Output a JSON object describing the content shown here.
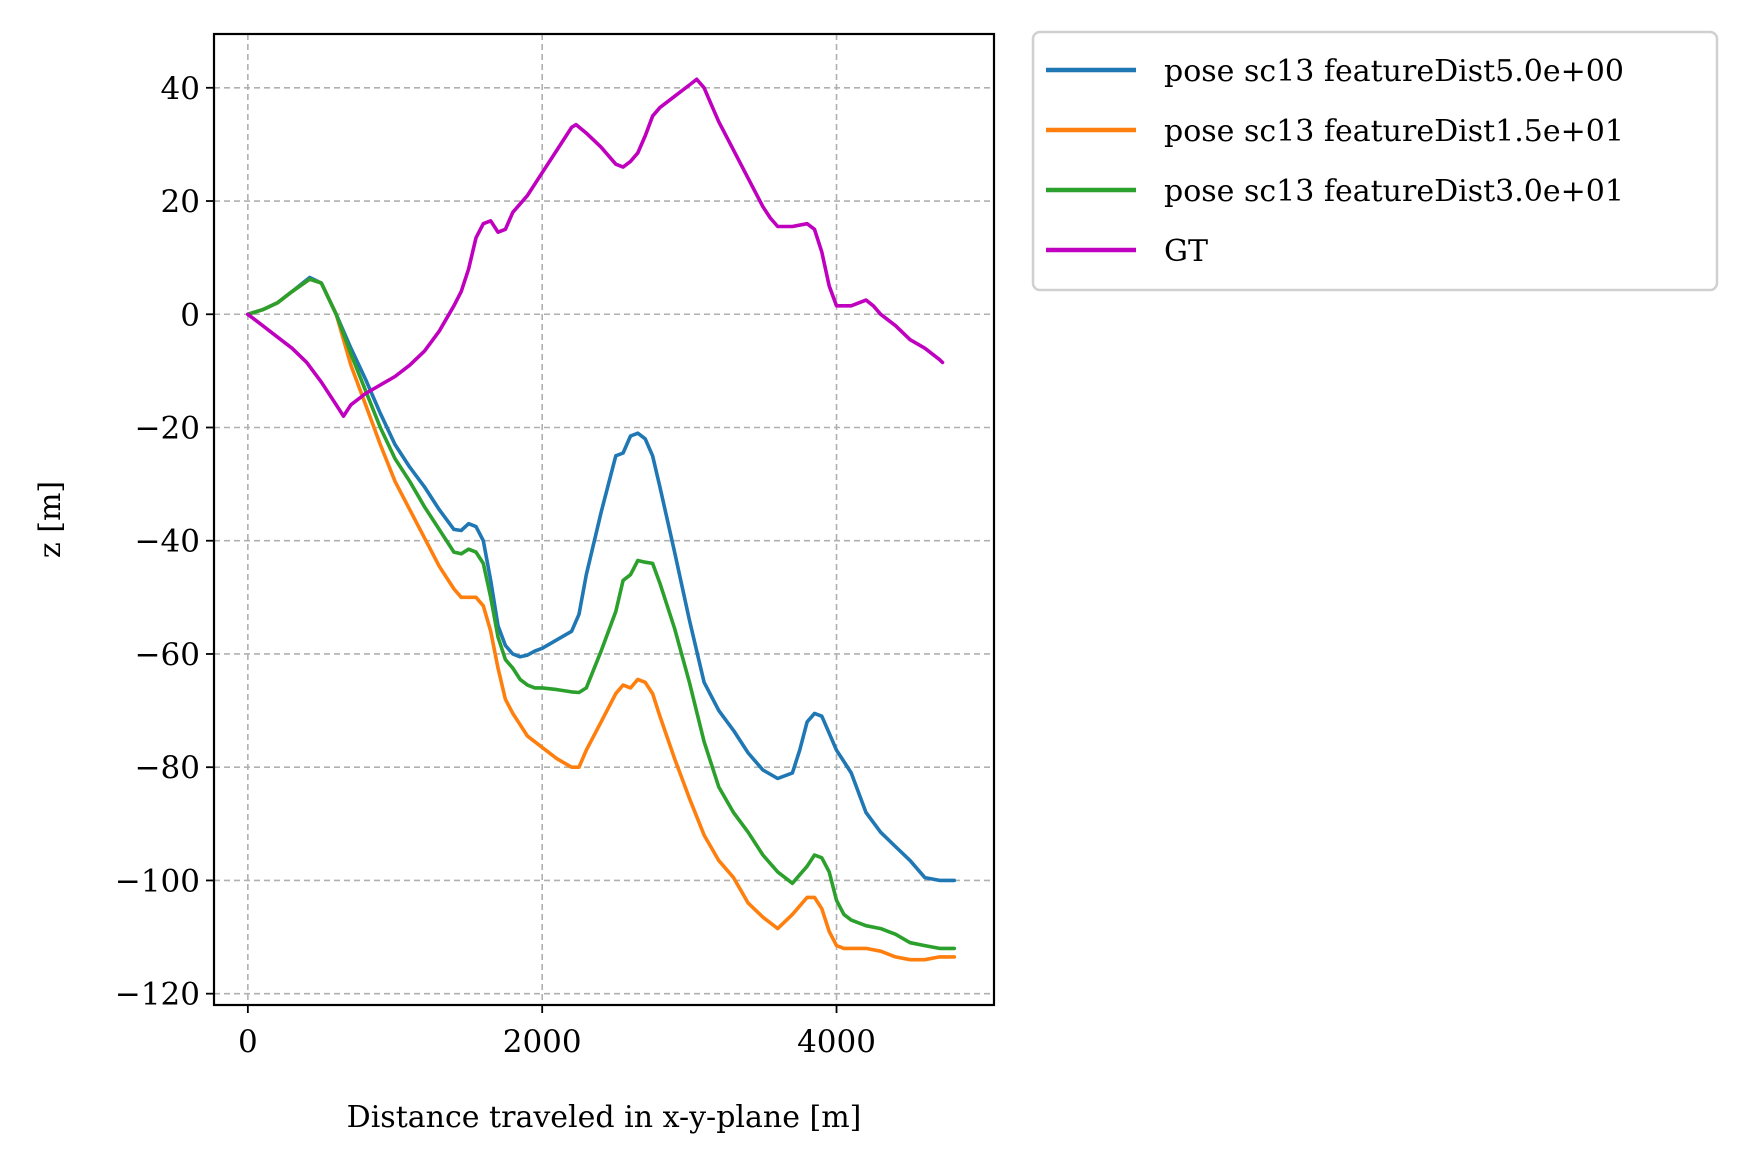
{
  "chart_data": {
    "type": "line",
    "xlabel": "Distance traveled in x-y-plane [m]",
    "ylabel": "z [m]",
    "xlim": [
      -230,
      5070
    ],
    "ylim": [
      -122,
      49.5
    ],
    "xticks": [
      0,
      2000,
      4000
    ],
    "yticks": [
      40,
      20,
      0,
      -20,
      -40,
      -60,
      -80,
      -100,
      -120
    ],
    "ytick_labels": [
      "40",
      "20",
      "0",
      "−20",
      "−40",
      "−60",
      "−80",
      "−100",
      "−120"
    ],
    "grid": true,
    "legend_position": "outside upper right",
    "series": [
      {
        "name": "pose sc13 featureDist5.0e+00",
        "color": "#1f77b4",
        "x": [
          0,
          100,
          200,
          300,
          420,
          500,
          600,
          700,
          800,
          900,
          1000,
          1100,
          1200,
          1300,
          1400,
          1450,
          1500,
          1550,
          1600,
          1650,
          1700,
          1750,
          1800,
          1850,
          1900,
          1950,
          2000,
          2100,
          2200,
          2250,
          2300,
          2400,
          2500,
          2550,
          2600,
          2650,
          2700,
          2750,
          2800,
          2900,
          3000,
          3100,
          3200,
          3300,
          3400,
          3500,
          3600,
          3700,
          3750,
          3800,
          3850,
          3900,
          3950,
          4000,
          4050,
          4100,
          4200,
          4300,
          4400,
          4500,
          4600,
          4700,
          4800
        ],
        "y": [
          0,
          0.8,
          2,
          4,
          6.5,
          5.5,
          0,
          -6,
          -11.5,
          -17.5,
          -23,
          -27,
          -30.5,
          -34.5,
          -38,
          -38.2,
          -37,
          -37.5,
          -40,
          -47,
          -55,
          -58.5,
          -60,
          -60.5,
          -60.2,
          -59.5,
          -59,
          -57.5,
          -56,
          -53,
          -46,
          -35,
          -25,
          -24.5,
          -21.5,
          -21,
          -22,
          -25,
          -30.5,
          -42,
          -54,
          -65,
          -70,
          -73.5,
          -77.5,
          -80.5,
          -82,
          -81,
          -77,
          -72,
          -70.5,
          -71,
          -74,
          -77,
          -79,
          -81,
          -88,
          -91.5,
          -94,
          -96.5,
          -99.5,
          -100,
          -100
        ]
      },
      {
        "name": "pose sc13 featureDist1.5e+01",
        "color": "#ff7f0e",
        "x": [
          0,
          100,
          200,
          300,
          420,
          500,
          600,
          700,
          800,
          900,
          1000,
          1100,
          1200,
          1300,
          1400,
          1450,
          1500,
          1550,
          1600,
          1650,
          1700,
          1750,
          1800,
          1850,
          1900,
          2000,
          2100,
          2200,
          2250,
          2300,
          2400,
          2500,
          2550,
          2600,
          2650,
          2700,
          2750,
          2800,
          2900,
          3000,
          3100,
          3200,
          3300,
          3400,
          3500,
          3600,
          3700,
          3800,
          3850,
          3900,
          3950,
          4000,
          4050,
          4100,
          4200,
          4300,
          4400,
          4500,
          4600,
          4700,
          4800
        ],
        "y": [
          0,
          0.8,
          2,
          4,
          6.2,
          5.5,
          0,
          -9,
          -16,
          -23,
          -29.5,
          -34.5,
          -39.5,
          -44.5,
          -48.5,
          -50,
          -50,
          -50,
          -51.5,
          -56,
          -62.5,
          -68,
          -70.5,
          -72.5,
          -74.5,
          -76.5,
          -78.5,
          -80,
          -80,
          -77,
          -72,
          -67,
          -65.5,
          -66,
          -64.5,
          -65,
          -67,
          -71,
          -78.5,
          -85.5,
          -92,
          -96.5,
          -99.5,
          -104,
          -106.5,
          -108.5,
          -106,
          -103,
          -103,
          -105,
          -109,
          -111.5,
          -112,
          -112,
          -112,
          -112.5,
          -113.5,
          -114,
          -114,
          -113.5,
          -113.5
        ]
      },
      {
        "name": "pose sc13 featureDist3.0e+01",
        "color": "#2ca02c",
        "x": [
          0,
          100,
          200,
          300,
          420,
          500,
          600,
          700,
          800,
          900,
          1000,
          1100,
          1200,
          1300,
          1400,
          1450,
          1500,
          1550,
          1600,
          1650,
          1700,
          1750,
          1800,
          1850,
          1900,
          1950,
          2000,
          2100,
          2200,
          2250,
          2300,
          2400,
          2500,
          2550,
          2600,
          2650,
          2700,
          2750,
          2800,
          2900,
          3000,
          3100,
          3200,
          3300,
          3400,
          3500,
          3600,
          3700,
          3750,
          3800,
          3850,
          3900,
          3950,
          4000,
          4050,
          4100,
          4200,
          4300,
          4400,
          4500,
          4600,
          4700,
          4800
        ],
        "y": [
          0,
          0.8,
          2,
          4,
          6.2,
          5.5,
          0,
          -7,
          -13.5,
          -20,
          -25.5,
          -29.5,
          -34,
          -38,
          -42,
          -42.3,
          -41.5,
          -42,
          -44,
          -50,
          -57,
          -61,
          -62.5,
          -64.5,
          -65.5,
          -66,
          -66,
          -66.3,
          -66.7,
          -66.8,
          -66,
          -59.5,
          -52.5,
          -47,
          -46,
          -43.5,
          -43.8,
          -44,
          -47.5,
          -55.5,
          -65,
          -75.5,
          -83.5,
          -88,
          -91.5,
          -95.5,
          -98.5,
          -100.5,
          -99,
          -97.5,
          -95.5,
          -96,
          -98.5,
          -103.5,
          -106,
          -107,
          -108,
          -108.5,
          -109.5,
          -111,
          -111.5,
          -112,
          -112
        ]
      },
      {
        "name": "GT",
        "color": "#bf00bf",
        "x": [
          0,
          100,
          200,
          300,
          400,
          500,
          600,
          650,
          700,
          800,
          900,
          1000,
          1100,
          1200,
          1300,
          1400,
          1450,
          1500,
          1550,
          1600,
          1650,
          1700,
          1750,
          1800,
          1900,
          2000,
          2100,
          2200,
          2230,
          2300,
          2400,
          2500,
          2550,
          2600,
          2650,
          2700,
          2750,
          2800,
          2900,
          3000,
          3050,
          3100,
          3150,
          3200,
          3300,
          3400,
          3500,
          3550,
          3600,
          3700,
          3800,
          3850,
          3900,
          3950,
          4000,
          4050,
          4100,
          4150,
          4200,
          4250,
          4300,
          4400,
          4500,
          4600,
          4700,
          4720
        ],
        "y": [
          0,
          -2,
          -4,
          -6,
          -8.5,
          -12,
          -16,
          -18,
          -16,
          -14,
          -12.5,
          -11,
          -9,
          -6.5,
          -3,
          1.5,
          4,
          8,
          13.5,
          16,
          16.5,
          14.5,
          15,
          18,
          21,
          25,
          29,
          33,
          33.5,
          32,
          29.5,
          26.5,
          26,
          27,
          28.5,
          31.5,
          35,
          36.5,
          38.5,
          40.5,
          41.5,
          40,
          37,
          34,
          29,
          24,
          19,
          17,
          15.5,
          15.5,
          16,
          15,
          11,
          5,
          1.5,
          1.5,
          1.5,
          2,
          2.5,
          1.5,
          0,
          -2,
          -4.5,
          -6,
          -8,
          -8.5
        ]
      }
    ]
  }
}
